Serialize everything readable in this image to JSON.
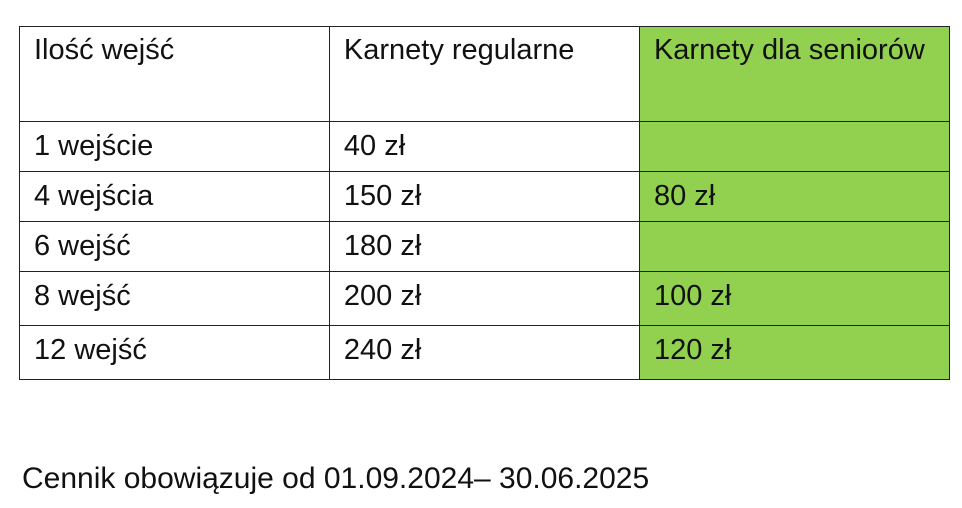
{
  "table": {
    "headers": [
      "Ilość wejść",
      "Karnety regularne",
      "Karnety dla seniorów"
    ],
    "rows": [
      [
        "1 wejście",
        "40 zł",
        ""
      ],
      [
        "4 wejścia",
        "150 zł",
        "80 zł"
      ],
      [
        "6 wejść",
        "180 zł",
        ""
      ],
      [
        "8 wejść",
        "200 zł",
        "100 zł"
      ],
      [
        "12 wejść",
        "240 zł",
        "120 zł"
      ]
    ],
    "highlight_color": "#92D050"
  },
  "footer": "Cennik obowiązuje od 01.09.2024– 30.06.2025"
}
